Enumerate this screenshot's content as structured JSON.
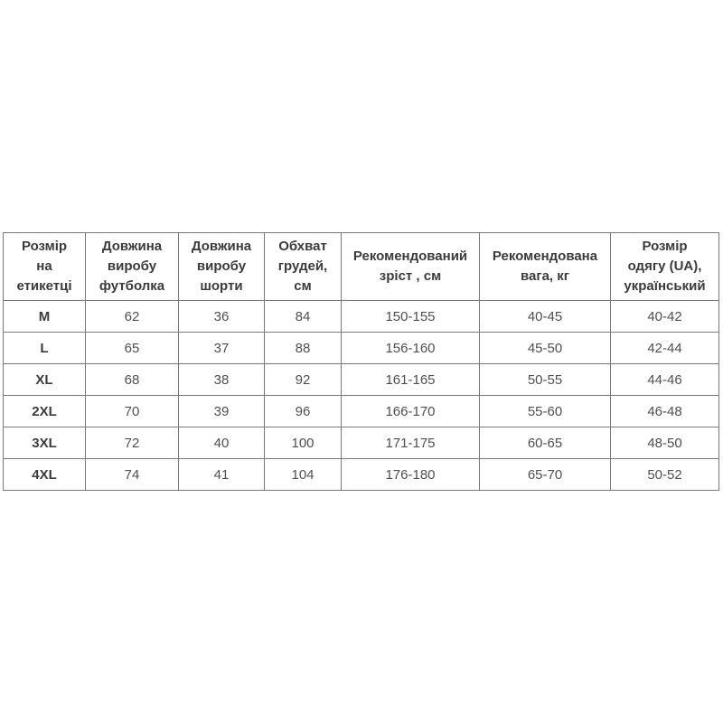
{
  "colors": {
    "background": "#ffffff",
    "border": "#7b7b7b",
    "header_text": "#3b3b3b",
    "cell_text": "#4f4f4f"
  },
  "chart_data": {
    "type": "table",
    "title": "",
    "columns": [
      "Розмір\nна\nетикетці",
      "Довжина\nвиробу\nфутболка",
      "Довжина\nвиробу\nшорти",
      "Обхват\nгрудей,\nсм",
      "Рекомендований\nзріст , см",
      "Рекомендована\nвага, кг",
      "Розмір\nодягу (UA),\nукраїнський"
    ],
    "rows": [
      [
        "M",
        "62",
        "36",
        "84",
        "150-155",
        "40-45",
        "40-42"
      ],
      [
        "L",
        "65",
        "37",
        "88",
        "156-160",
        "45-50",
        "42-44"
      ],
      [
        "XL",
        "68",
        "38",
        "92",
        "161-165",
        "50-55",
        "44-46"
      ],
      [
        "2XL",
        "70",
        "39",
        "96",
        "166-170",
        "55-60",
        "46-48"
      ],
      [
        "3XL",
        "72",
        "40",
        "100",
        "171-175",
        "60-65",
        "48-50"
      ],
      [
        "4XL",
        "74",
        "41",
        "104",
        "176-180",
        "65-70",
        "50-52"
      ]
    ]
  }
}
